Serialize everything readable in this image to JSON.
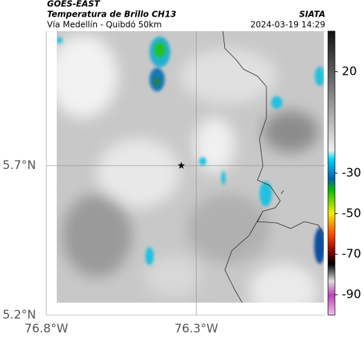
{
  "map": {
    "title": "GOES-EAST",
    "subtitle": "Temperatura de Brillo CH13",
    "route": "Vía Medellín - Quibdó 50km",
    "source": "SIATA",
    "timestamp": "2024-03-19 14:29",
    "xlim": [
      -76.8,
      -75.87
    ],
    "ylim": [
      5.2,
      6.15
    ],
    "xticks": [
      {
        "value": -76.8,
        "label": "76.8°W"
      },
      {
        "value": -76.3,
        "label": "76.3°W"
      }
    ],
    "yticks": [
      {
        "value": 5.7,
        "label": "5.7°N"
      },
      {
        "value": 5.2,
        "label": "5.2°N"
      }
    ],
    "marker": {
      "lon": -76.35,
      "lat": 5.7
    },
    "colorbar": {
      "lim": [
        -100,
        40
      ],
      "ticks": [
        20,
        -30,
        -50,
        -70,
        -90
      ]
    }
  }
}
